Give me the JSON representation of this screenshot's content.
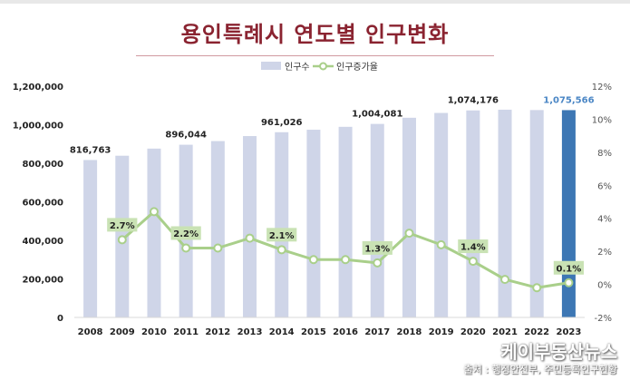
{
  "chart_data": {
    "type": "bar+line",
    "title": "용인특례시 연도별 인구변화",
    "legend": {
      "bar_label": "인구수",
      "line_label": "인구증가율",
      "position": "top"
    },
    "categories": [
      "2008",
      "2009",
      "2010",
      "2011",
      "2012",
      "2013",
      "2014",
      "2015",
      "2016",
      "2017",
      "2018",
      "2019",
      "2020",
      "2021",
      "2022",
      "2023"
    ],
    "series": [
      {
        "name": "인구수",
        "type": "bar",
        "axis": "left",
        "values": [
          816763,
          839000,
          876000,
          896044,
          915000,
          941000,
          961026,
          974000,
          989000,
          1004081,
          1036000,
          1061000,
          1074176,
          1078000,
          1076000,
          1075566
        ],
        "data_labels": [
          "816,763",
          "",
          "",
          "896,044",
          "",
          "",
          "961,026",
          "",
          "",
          "1,004,081",
          "",
          "",
          "1,074,176",
          "",
          "",
          "1,075,566"
        ],
        "color": "#cfd5e8",
        "highlight_color": "#3d77b4",
        "highlight_label_color": "#4a86c5"
      },
      {
        "name": "인구증가율",
        "type": "line",
        "axis": "right",
        "values": [
          null,
          2.7,
          4.4,
          2.2,
          2.2,
          2.8,
          2.1,
          1.5,
          1.5,
          1.3,
          3.1,
          2.4,
          1.4,
          0.3,
          -0.2,
          0.1
        ],
        "data_labels": [
          "",
          "2.7%",
          "",
          "2.2%",
          "",
          "",
          "2.1%",
          "",
          "",
          "1.3%",
          "",
          "",
          "1.4%",
          "",
          "",
          "0.1%"
        ],
        "color": "#a9cf8a",
        "label_bg": "#c9e2b4"
      }
    ],
    "y_left": {
      "min": 0,
      "max": 1200000,
      "ticks": [
        "0",
        "200,000",
        "400,000",
        "600,000",
        "800,000",
        "1,000,000",
        "1,200,000"
      ]
    },
    "y_right": {
      "min": -2,
      "max": 12,
      "ticks": [
        "-2%",
        "0%",
        "2%",
        "4%",
        "6%",
        "8%",
        "10%",
        "12%"
      ]
    },
    "grid": false
  },
  "watermark": "케이부동산뉴스",
  "source": "출처 : 행정안전부, 주민등록인구현황"
}
